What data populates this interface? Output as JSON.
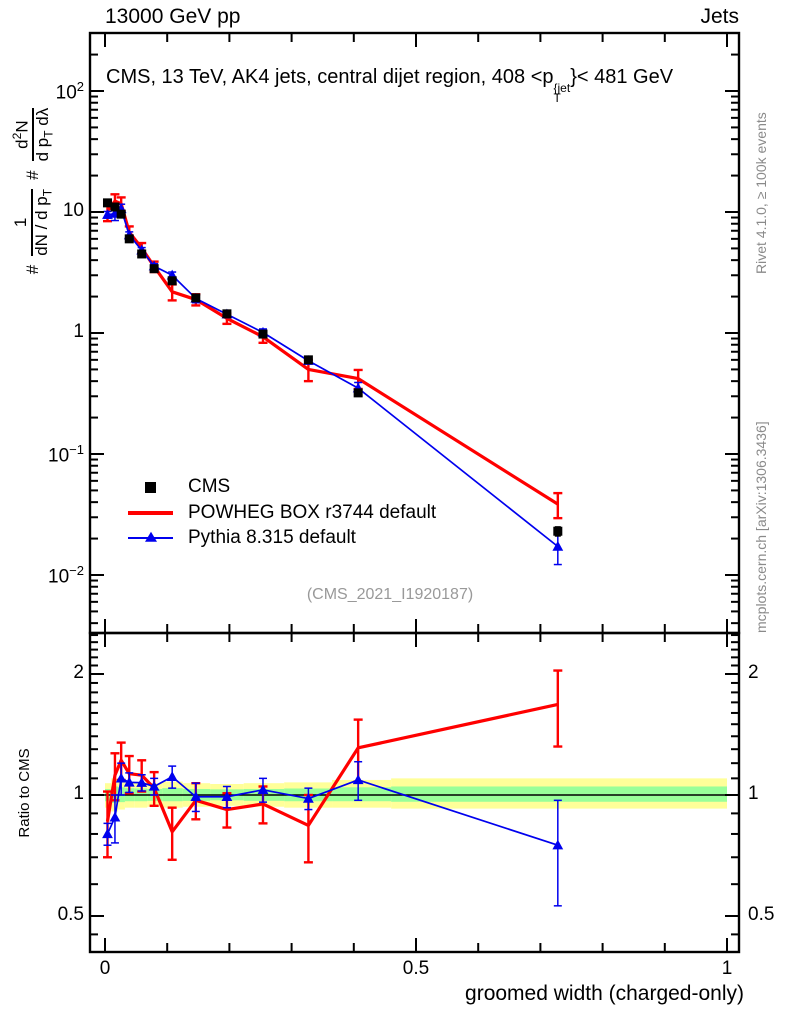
{
  "header": {
    "beam": "13000 GeV pp",
    "category": "Jets"
  },
  "plot_title": {
    "prefix": "CMS, 13 TeV, AK4 jets, central dijet region, 408 <p",
    "sup": "{jet",
    "sub": "T",
    "suffix": "}< 481 GeV"
  },
  "y_axis_label": {
    "hash1": "#",
    "frac1_num": "1",
    "frac1_den": "dN / d p",
    "frac1_den_sub": "T",
    "hash2": "#",
    "frac2_num_d": "d",
    "frac2_num_exp": "2",
    "frac2_num_N": "N",
    "frac2_den": "d p",
    "frac2_den_sub": "T",
    "frac2_den_tail": " dλ"
  },
  "legend": {
    "items": [
      {
        "label": "CMS",
        "marker": "black-square"
      },
      {
        "label": "POWHEG BOX r3744 default",
        "marker": "red-line"
      },
      {
        "label": "Pythia 8.315 default",
        "marker": "blue-line-triangle"
      }
    ]
  },
  "watermark": "(CMS_2021_I1920187)",
  "side_notes": {
    "rivet": "Rivet 4.1.0, ≥ 100k events",
    "mcplots": "mcplots.cern.ch [arXiv:1306.3436]"
  },
  "ratio_panel_label": "Ratio to CMS",
  "x_axis_title": "groomed width (charged-only)",
  "colors": {
    "cms": "#000000",
    "powheg": "#ff0000",
    "pythia": "#0000ee",
    "band_yellow": "#ffff99",
    "band_green": "#99ff99",
    "gray_text": "#8a8a8a"
  },
  "chart_data": {
    "type": "line",
    "title": "CMS, 13 TeV, AK4 jets, central dijet region, 408 < pT(jet) < 481 GeV",
    "xlabel": "groomed width (charged-only)",
    "ylabel": "# 1/(dN/dpT) # d2N/(dpT dlambda)",
    "x_range": [
      0,
      1
    ],
    "y_range_main": [
      0.0035,
      290
    ],
    "y_scale_main": "log",
    "ratio_label": "Ratio to CMS",
    "ratio_range": [
      0.41,
      2.56
    ],
    "ratio_scale": "log",
    "x": [
      0.004,
      0.016,
      0.026,
      0.039,
      0.059,
      0.079,
      0.108,
      0.146,
      0.196,
      0.254,
      0.327,
      0.407,
      0.728
    ],
    "bin_edges": [
      0.0,
      0.01,
      0.021,
      0.032,
      0.047,
      0.068,
      0.092,
      0.125,
      0.169,
      0.223,
      0.288,
      0.365,
      0.46,
      1.0
    ],
    "series": [
      {
        "name": "CMS",
        "marker": "square",
        "values": [
          11.9,
          11.0,
          9.6,
          6.0,
          4.5,
          3.4,
          2.7,
          1.95,
          1.44,
          0.98,
          0.6,
          0.32,
          0.023
        ],
        "yerr": [
          0.6,
          0.55,
          0.45,
          0.3,
          0.2,
          0.15,
          0.12,
          0.09,
          0.06,
          0.045,
          0.03,
          0.018,
          0.002
        ]
      },
      {
        "name": "POWHEG BOX r3744 default",
        "marker": "none",
        "values": [
          10.2,
          12.3,
          11.7,
          6.8,
          5.04,
          3.54,
          2.19,
          1.89,
          1.32,
          0.93,
          0.5,
          0.42,
          0.0385
        ],
        "yerr": [
          1.8,
          1.7,
          1.5,
          0.8,
          0.5,
          0.35,
          0.33,
          0.2,
          0.13,
          0.1,
          0.1,
          0.075,
          0.009
        ]
      },
      {
        "name": "Pythia 8.315 default",
        "marker": "triangle",
        "values": [
          9.5,
          9.7,
          10.6,
          6.45,
          4.83,
          3.57,
          3.0,
          1.93,
          1.43,
          1.01,
          0.59,
          0.35,
          0.0172
        ],
        "yerr": [
          0.6,
          1.2,
          1.0,
          0.4,
          0.25,
          0.17,
          0.19,
          0.15,
          0.09,
          0.07,
          0.035,
          0.04,
          0.005
        ]
      }
    ],
    "ratio_series": [
      {
        "name": "POWHEG BOX r3744 default",
        "marker": "none",
        "values": [
          0.86,
          1.12,
          1.22,
          1.13,
          1.12,
          1.04,
          0.81,
          0.97,
          0.92,
          0.95,
          0.84,
          1.31,
          1.68
        ],
        "yerr": [
          0.16,
          0.15,
          0.13,
          0.12,
          0.1,
          0.1,
          0.12,
          0.1,
          0.09,
          0.1,
          0.16,
          0.23,
          0.36
        ]
      },
      {
        "name": "Pythia 8.315 default",
        "marker": "triangle",
        "values": [
          0.8,
          0.88,
          1.1,
          1.075,
          1.073,
          1.05,
          1.11,
          0.99,
          0.99,
          1.03,
          0.98,
          1.09,
          0.75
        ],
        "yerr": [
          0.05,
          0.12,
          0.1,
          0.06,
          0.05,
          0.05,
          0.07,
          0.08,
          0.06,
          0.07,
          0.06,
          0.12,
          0.22
        ]
      }
    ],
    "ratio_band": {
      "yellow": [
        [
          0.93,
          1.07
        ],
        [
          0.91,
          1.1
        ],
        [
          0.92,
          1.09
        ],
        [
          0.93,
          1.08
        ],
        [
          0.93,
          1.075
        ],
        [
          0.935,
          1.07
        ],
        [
          0.93,
          1.08
        ],
        [
          0.935,
          1.07
        ],
        [
          0.94,
          1.065
        ],
        [
          0.935,
          1.07
        ],
        [
          0.93,
          1.075
        ],
        [
          0.93,
          1.09
        ],
        [
          0.925,
          1.1
        ]
      ],
      "green": [
        [
          0.965,
          1.035
        ],
        [
          0.955,
          1.05
        ],
        [
          0.96,
          1.045
        ],
        [
          0.965,
          1.04
        ],
        [
          0.965,
          1.038
        ],
        [
          0.967,
          1.035
        ],
        [
          0.965,
          1.04
        ],
        [
          0.967,
          1.035
        ],
        [
          0.97,
          1.033
        ],
        [
          0.967,
          1.035
        ],
        [
          0.965,
          1.038
        ],
        [
          0.965,
          1.045
        ],
        [
          0.962,
          1.05
        ]
      ]
    },
    "main_y_ticks": [
      {
        "v": 100,
        "base": "10",
        "exp": "2"
      },
      {
        "v": 10,
        "base": "10",
        "exp": ""
      },
      {
        "v": 1,
        "base": "1",
        "exp": ""
      },
      {
        "v": 0.1,
        "base": "10",
        "exp": "−1"
      },
      {
        "v": 0.01,
        "base": "10",
        "exp": "−2"
      }
    ],
    "ratio_y_ticks": [
      {
        "v": 2,
        "label": "2"
      },
      {
        "v": 1,
        "label": "1"
      },
      {
        "v": 0.5,
        "label": "0.5"
      }
    ],
    "x_ticks": [
      {
        "v": 0,
        "label": "0"
      },
      {
        "v": 0.5,
        "label": "0.5"
      },
      {
        "v": 1,
        "label": "1"
      }
    ]
  }
}
